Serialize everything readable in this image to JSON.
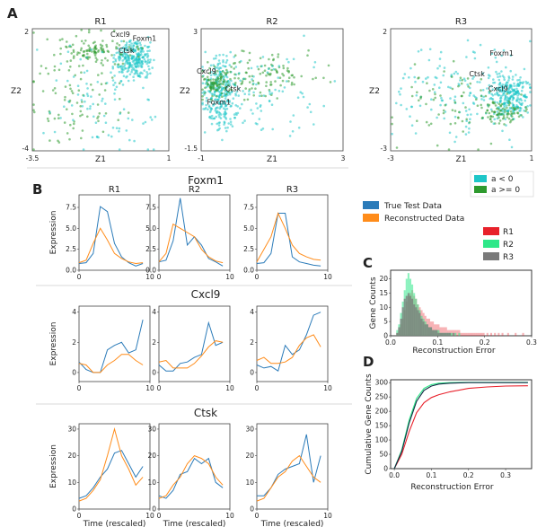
{
  "panel_labels": [
    "A",
    "B",
    "C",
    "D"
  ],
  "colors": {
    "teal": "#1ec6c8",
    "green": "#2e9a2e",
    "blue": "#2b7bb9",
    "orange": "#ff8c1a",
    "red": "#e8212b",
    "mint": "#2ee889",
    "gray": "#7a7a7a",
    "navy": "#102a43"
  },
  "chart_data": [
    {
      "type": "scatter",
      "panel": "A",
      "xlabel": "Z1",
      "ylabel": "Z2",
      "legend": {
        "placement": "below-right",
        "entries": [
          "a  <  0",
          "a >= 0"
        ]
      },
      "plots": [
        {
          "title": "R1",
          "xlim": [
            -3.5,
            1
          ],
          "ylim": [
            -4,
            2
          ],
          "xticks": [
            "-3.5",
            "1"
          ],
          "yticks": [
            "2",
            "-4"
          ],
          "annotations": [
            {
              "text": "Cxcl9",
              "x": -0.6,
              "y": 1.6
            },
            {
              "text": "Foxm1",
              "x": 0.2,
              "y": 1.4
            },
            {
              "text": "Ctsk",
              "x": -0.4,
              "y": 0.8
            }
          ]
        },
        {
          "title": "R2",
          "xlim": [
            -1,
            3
          ],
          "ylim": [
            -1.5,
            3
          ],
          "xticks": [
            "-1",
            "3"
          ],
          "yticks": [
            "3",
            "-1.5"
          ],
          "annotations": [
            {
              "text": "Cxcl9",
              "x": -0.85,
              "y": 1.35
            },
            {
              "text": "Ctsk",
              "x": -0.1,
              "y": 0.7
            },
            {
              "text": "Foxm1",
              "x": -0.5,
              "y": 0.2
            }
          ]
        },
        {
          "title": "R3",
          "xlim": [
            -3,
            1
          ],
          "ylim": [
            -3,
            2
          ],
          "xticks": [
            "-3",
            "1"
          ],
          "yticks": [
            "2",
            "-3"
          ],
          "annotations": [
            {
              "text": "Foxm1",
              "x": 0.15,
              "y": 0.9
            },
            {
              "text": "Ctsk",
              "x": -0.55,
              "y": 0.05
            },
            {
              "text": "Cxcl9",
              "x": 0.05,
              "y": -0.55
            }
          ]
        }
      ]
    },
    {
      "type": "line",
      "panel": "B",
      "x": [
        0,
        1,
        2,
        3,
        4,
        5,
        6,
        7,
        8,
        9
      ],
      "xlim": [
        0,
        10
      ],
      "xticks": [
        0,
        10
      ],
      "ylabel": "Expression",
      "xlabel": "Time (rescaled)",
      "legend": {
        "placement": "top-right",
        "entries": [
          "True Test Data",
          "Reconstructed Data"
        ]
      },
      "genes": [
        {
          "name": "Foxm1",
          "ylim": [
            0,
            9
          ],
          "yticks": [
            0.0,
            2.5,
            5.0,
            7.5
          ],
          "ytick_labels": [
            "0.0",
            "2.5",
            "5.0",
            "7.5"
          ],
          "plots": [
            {
              "title": "R1",
              "true": [
                0.8,
                0.9,
                2.0,
                7.6,
                7.0,
                3.2,
                1.6,
                0.9,
                0.5,
                0.8
              ],
              "recon": [
                0.9,
                1.2,
                3.2,
                5.0,
                3.6,
                2.0,
                1.4,
                1.0,
                0.8,
                0.9
              ]
            },
            {
              "title": "R2",
              "true": [
                1.0,
                1.2,
                3.5,
                8.6,
                3.0,
                4.0,
                3.0,
                1.4,
                1.0,
                0.5
              ],
              "recon": [
                1.0,
                2.0,
                5.5,
                5.0,
                4.5,
                4.0,
                2.5,
                1.6,
                1.1,
                0.9
              ]
            },
            {
              "title": "R3",
              "true": [
                0.8,
                0.9,
                2.0,
                6.8,
                6.8,
                1.6,
                1.0,
                0.8,
                0.6,
                0.5
              ],
              "recon": [
                1.0,
                2.5,
                4.0,
                6.8,
                5.0,
                3.0,
                2.0,
                1.6,
                1.3,
                1.2
              ]
            }
          ]
        },
        {
          "name": "Cxcl9",
          "ylim": [
            -0.6,
            4.4
          ],
          "yticks": [
            0,
            2,
            4
          ],
          "ytick_labels": [
            "0",
            "2",
            "4"
          ],
          "plots": [
            {
              "true": [
                0.7,
                0.2,
                0.0,
                0.0,
                1.5,
                1.8,
                2.0,
                1.3,
                1.5,
                3.5
              ],
              "recon": [
                0.6,
                0.5,
                0.0,
                0.0,
                0.5,
                0.8,
                1.2,
                1.2,
                0.8,
                0.5
              ]
            },
            {
              "true": [
                0.5,
                0.1,
                0.1,
                0.6,
                0.7,
                1.0,
                1.2,
                3.3,
                1.8,
                2.0
              ],
              "recon": [
                0.7,
                0.8,
                0.3,
                0.3,
                0.3,
                0.6,
                1.1,
                1.7,
                2.1,
                2.0
              ]
            },
            {
              "true": [
                0.5,
                0.3,
                0.4,
                0.1,
                1.8,
                1.2,
                1.5,
                2.5,
                3.8,
                4.0
              ],
              "recon": [
                0.8,
                1.0,
                0.6,
                0.6,
                0.7,
                1.0,
                1.8,
                2.3,
                2.5,
                1.7
              ]
            }
          ]
        },
        {
          "name": "Ctsk",
          "ylim": [
            0,
            32
          ],
          "yticks": [
            0,
            10,
            20,
            30
          ],
          "ytick_labels": [
            "0",
            "10",
            "20",
            "30"
          ],
          "plots": [
            {
              "true": [
                4,
                5,
                8,
                12,
                15,
                21,
                22,
                17,
                12,
                16
              ],
              "recon": [
                3,
                4,
                7,
                11,
                20,
                30,
                20,
                15,
                9,
                12
              ]
            },
            {
              "true": [
                5,
                4,
                7,
                13,
                14,
                19,
                17,
                19,
                10,
                8
              ],
              "recon": [
                4,
                5,
                9,
                12,
                17,
                20,
                19,
                17,
                12,
                9
              ]
            },
            {
              "true": [
                5,
                5,
                8,
                13,
                15,
                16,
                17,
                28,
                10,
                20
              ],
              "recon": [
                3,
                4,
                8,
                12,
                14,
                18,
                20,
                16,
                12,
                10
              ]
            }
          ]
        }
      ]
    },
    {
      "type": "bar",
      "panel": "C",
      "subtype": "histogram",
      "xlabel": "Reconstruction Error",
      "ylabel": "Gene Counts",
      "xlim": [
        0,
        0.3
      ],
      "xticks": [
        0.0,
        0.1,
        0.2,
        0.3
      ],
      "xtick_labels": [
        "0.0",
        "0.1",
        "0.2",
        "0.3"
      ],
      "ylim": [
        0,
        23
      ],
      "yticks": [
        0,
        5,
        10,
        15,
        20
      ],
      "ytick_labels": [
        "0",
        "5",
        "10",
        "15",
        "20"
      ],
      "legend": {
        "placement": "top-right",
        "entries": [
          "R1",
          "R2",
          "R3"
        ]
      },
      "bin_width": 0.004,
      "bin_start": 0.0,
      "series": [
        {
          "name": "R1",
          "values": [
            0,
            0,
            0,
            1,
            2,
            4,
            6,
            9,
            12,
            14,
            15,
            16,
            14,
            13,
            11,
            10,
            9,
            8,
            7,
            6,
            6,
            5,
            5,
            4,
            4,
            4,
            3,
            3,
            3,
            3,
            2,
            2,
            2,
            2,
            2,
            2,
            2,
            1,
            1,
            1,
            1,
            1,
            1,
            1,
            1,
            1,
            1,
            1,
            1,
            1,
            0,
            1,
            0,
            1,
            0,
            1,
            0,
            1,
            0,
            1,
            0,
            0,
            1,
            0,
            0,
            0,
            1,
            0,
            0,
            0,
            1,
            0,
            0,
            0,
            0
          ]
        },
        {
          "name": "R2",
          "values": [
            0,
            0,
            0,
            2,
            4,
            8,
            12,
            16,
            20,
            22,
            20,
            18,
            15,
            13,
            11,
            9,
            7,
            6,
            5,
            4,
            3,
            3,
            2,
            2,
            2,
            2,
            1,
            1,
            1,
            1,
            1,
            1,
            1,
            0,
            1,
            0,
            1,
            0,
            0,
            0,
            0,
            0,
            0,
            0,
            0,
            0,
            0,
            0,
            0,
            0,
            0,
            0,
            0,
            0,
            0,
            0,
            0,
            0,
            0,
            0,
            0,
            0,
            0,
            0,
            0,
            0,
            0,
            0,
            0,
            0,
            0,
            0,
            0,
            0,
            0
          ]
        },
        {
          "name": "R3",
          "values": [
            0,
            0,
            0,
            1,
            3,
            6,
            10,
            13,
            14,
            15,
            14,
            13,
            11,
            10,
            9,
            8,
            6,
            5,
            4,
            4,
            3,
            3,
            2,
            2,
            2,
            1,
            1,
            1,
            1,
            1,
            1,
            1,
            0,
            1,
            0,
            0,
            0,
            0,
            0,
            0,
            0,
            0,
            0,
            0,
            0,
            0,
            0,
            0,
            0,
            0,
            0,
            0,
            0,
            0,
            0,
            0,
            0,
            0,
            0,
            0,
            0,
            0,
            0,
            0,
            0,
            0,
            0,
            0,
            0,
            0,
            0,
            0,
            0,
            0,
            0
          ]
        }
      ]
    },
    {
      "type": "line",
      "panel": "D",
      "xlabel": "Reconstruction Error",
      "ylabel": "Cumulative Gene Counts",
      "xlim": [
        -0.01,
        0.37
      ],
      "xticks": [
        0.0,
        0.1,
        0.2,
        0.3
      ],
      "xtick_labels": [
        "0.0",
        "0.1",
        "0.2",
        "0.3"
      ],
      "ylim": [
        0,
        310
      ],
      "yticks": [
        0,
        50,
        100,
        150,
        200,
        250,
        300
      ],
      "ytick_labels": [
        "0",
        "50",
        "100",
        "150",
        "200",
        "250",
        "300"
      ],
      "x": [
        0.0,
        0.02,
        0.04,
        0.06,
        0.08,
        0.1,
        0.12,
        0.15,
        0.2,
        0.25,
        0.3,
        0.36
      ],
      "series": [
        {
          "name": "R1",
          "values": [
            0,
            50,
            130,
            195,
            230,
            248,
            258,
            268,
            280,
            285,
            288,
            289
          ]
        },
        {
          "name": "R2",
          "values": [
            0,
            65,
            170,
            245,
            280,
            293,
            298,
            300,
            301,
            301,
            301,
            301
          ]
        },
        {
          "name": "R3",
          "values": [
            0,
            60,
            160,
            235,
            273,
            288,
            295,
            298,
            300,
            300,
            300,
            300
          ]
        }
      ]
    }
  ]
}
